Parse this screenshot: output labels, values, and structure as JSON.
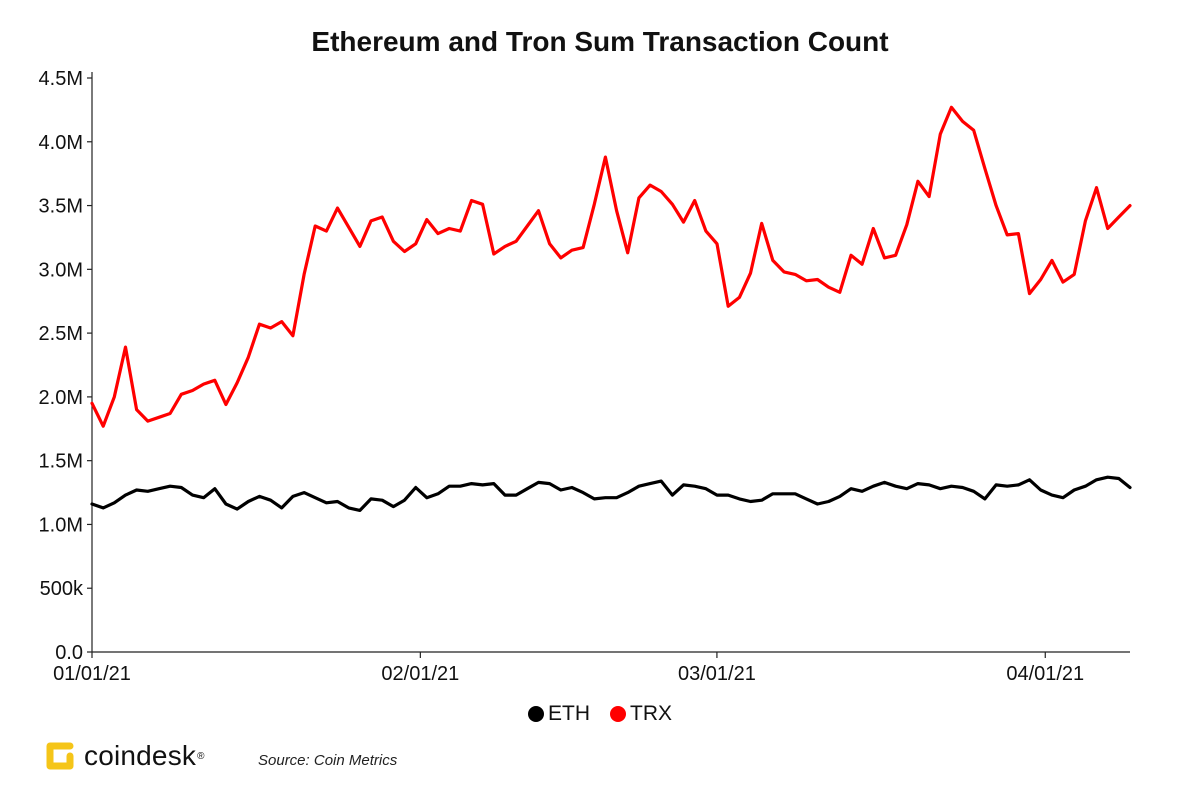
{
  "colors": {
    "eth": "#000000",
    "trx": "#ff0000",
    "logo_accent": "#f5c518"
  },
  "chart_data": {
    "type": "line",
    "title": "Ethereum and Tron Sum Transaction Count",
    "xlabel": "",
    "ylabel": "",
    "x_start": "2021-01-01",
    "x_end": "2021-04-09",
    "x_ticks": [
      "01/01/21",
      "02/01/21",
      "03/01/21",
      "04/01/21"
    ],
    "y_ticks": [
      "0.0",
      "500k",
      "1.0M",
      "1.5M",
      "2.0M",
      "2.5M",
      "3.0M",
      "3.5M",
      "4.0M",
      "4.5M"
    ],
    "ylim": [
      0,
      4500000
    ],
    "grid": false,
    "legend_position": "bottom",
    "series": [
      {
        "name": "ETH",
        "color": "#000000",
        "values": [
          1160000,
          1130000,
          1170000,
          1230000,
          1270000,
          1260000,
          1280000,
          1300000,
          1290000,
          1230000,
          1210000,
          1280000,
          1160000,
          1120000,
          1180000,
          1220000,
          1190000,
          1130000,
          1220000,
          1250000,
          1210000,
          1170000,
          1180000,
          1130000,
          1110000,
          1200000,
          1190000,
          1140000,
          1190000,
          1290000,
          1210000,
          1240000,
          1300000,
          1300000,
          1320000,
          1310000,
          1320000,
          1230000,
          1230000,
          1280000,
          1330000,
          1320000,
          1270000,
          1290000,
          1250000,
          1200000,
          1210000,
          1210000,
          1250000,
          1300000,
          1320000,
          1340000,
          1230000,
          1310000,
          1300000,
          1280000,
          1230000,
          1230000,
          1200000,
          1180000,
          1190000,
          1240000,
          1240000,
          1240000,
          1200000,
          1160000,
          1180000,
          1220000,
          1280000,
          1260000,
          1300000,
          1330000,
          1300000,
          1280000,
          1320000,
          1310000,
          1280000,
          1300000,
          1290000,
          1260000,
          1200000,
          1310000,
          1300000,
          1310000,
          1350000,
          1270000,
          1230000,
          1210000,
          1270000,
          1300000,
          1350000,
          1370000,
          1360000,
          1290000
        ]
      },
      {
        "name": "TRX",
        "color": "#ff0000",
        "values": [
          1950000,
          1770000,
          2000000,
          2390000,
          1900000,
          1810000,
          1840000,
          1870000,
          2020000,
          2050000,
          2100000,
          2130000,
          1940000,
          2110000,
          2310000,
          2570000,
          2540000,
          2590000,
          2480000,
          2960000,
          3340000,
          3300000,
          3480000,
          3330000,
          3180000,
          3380000,
          3410000,
          3220000,
          3140000,
          3200000,
          3390000,
          3280000,
          3320000,
          3300000,
          3540000,
          3510000,
          3120000,
          3180000,
          3220000,
          3340000,
          3460000,
          3200000,
          3090000,
          3150000,
          3170000,
          3510000,
          3880000,
          3460000,
          3130000,
          3560000,
          3660000,
          3610000,
          3510000,
          3370000,
          3540000,
          3300000,
          3200000,
          2710000,
          2780000,
          2970000,
          3360000,
          3070000,
          2980000,
          2960000,
          2910000,
          2920000,
          2860000,
          2820000,
          3110000,
          3040000,
          3320000,
          3090000,
          3110000,
          3350000,
          3690000,
          3570000,
          4060000,
          4270000,
          4160000,
          4090000,
          3790000,
          3500000,
          3270000,
          3280000,
          2810000,
          2920000,
          3070000,
          2900000,
          2960000,
          3380000,
          3640000,
          3320000,
          3410000,
          3500000
        ]
      }
    ]
  },
  "legend": [
    {
      "name": "ETH",
      "color": "#000000"
    },
    {
      "name": "TRX",
      "color": "#ff0000"
    }
  ],
  "footer": {
    "logo_text": "coindesk",
    "logo_reg": "®",
    "source": "Source: Coin Metrics"
  }
}
